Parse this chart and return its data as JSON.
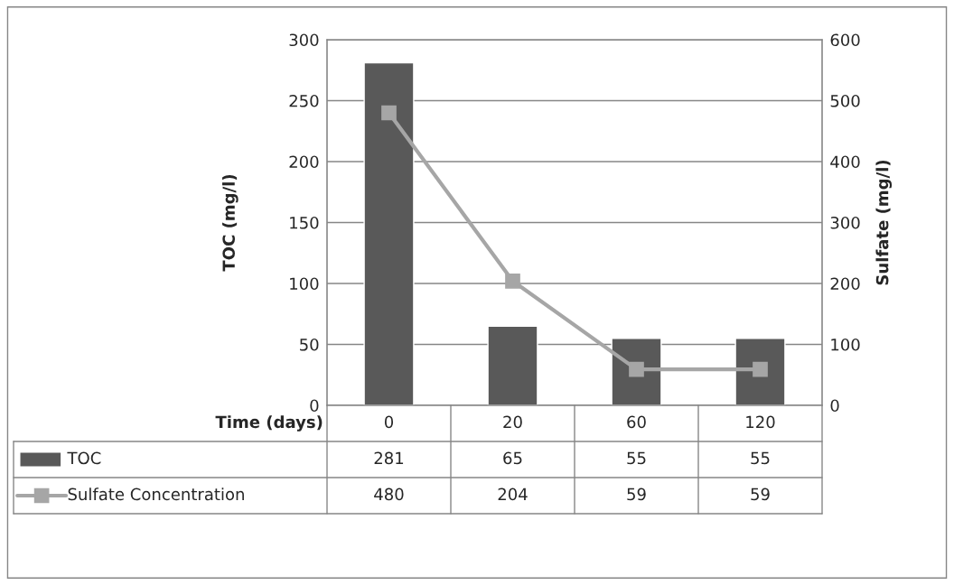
{
  "chart_data": {
    "type": "bar",
    "xlabel": "Time (days)",
    "ylabel": "TOC (mg/l)",
    "y2label": "Sulfate (mg/l)",
    "categories": [
      "0",
      "20",
      "60",
      "120"
    ],
    "series": [
      {
        "name": "TOC",
        "color": "#595959",
        "values": [
          281,
          65,
          55,
          55
        ]
      },
      {
        "name": "Sulfate Concentration",
        "type": "line",
        "axis": "y2",
        "color": "#a6a6a6",
        "marker": "square",
        "values": [
          480,
          204,
          59,
          59
        ]
      }
    ],
    "ylim": [
      0,
      300
    ],
    "yticks": [
      0,
      50,
      100,
      150,
      200,
      250,
      300
    ],
    "y2lim": [
      0,
      600
    ],
    "y2ticks": [
      0,
      100,
      200,
      300,
      400,
      500,
      600
    ],
    "grid": "y",
    "legend": "bottom",
    "data_labels": true
  }
}
